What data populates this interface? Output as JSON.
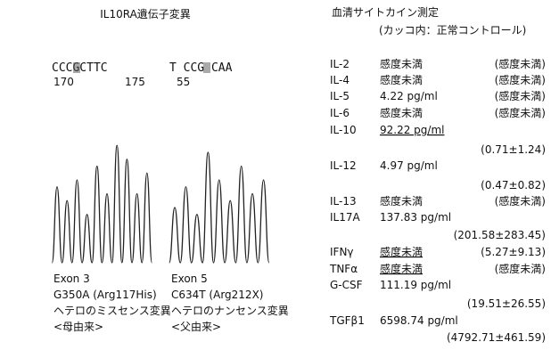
{
  "left": {
    "title": "IL10RA遺伝子変異",
    "panels": [
      {
        "sequence": "CCCGCTTC",
        "positions": [
          "170",
          "175"
        ],
        "exon": "Exon 3",
        "mutation": "G350A (Arg117His)",
        "type": "ヘテロのミスセンス変異",
        "origin": "<母由来>"
      },
      {
        "sequence": "T CCG CAA",
        "positions": [
          "55"
        ],
        "exon": "Exon 5",
        "mutation": "C634T (Arg212X)",
        "type": "ヘテロのナンセンス変異",
        "origin": "<父由来>"
      }
    ]
  },
  "right": {
    "title": "血清サイトカイン測定",
    "subtitle": "(カッコ内：正常コントロール)",
    "rows": [
      {
        "name": "IL-2",
        "value": "感度未満",
        "control": "(感度未満)"
      },
      {
        "name": "IL-4",
        "value": "感度未満",
        "control": "(感度未満)"
      },
      {
        "name": "IL-5",
        "value": "4.22 pg/ml",
        "control": "(感度未満)"
      },
      {
        "name": "IL-6",
        "value": "感度未満",
        "control": "(感度未満)"
      },
      {
        "name": "IL-10",
        "value": "92.22 pg/ml",
        "control": "(0.71±1.24)"
      },
      {
        "name": "IL-12",
        "value": "4.97 pg/ml",
        "control": "(0.47±0.82)"
      },
      {
        "name": "IL-13",
        "value": "感度未満",
        "control": "(感度未満)"
      },
      {
        "name": "IL17A",
        "value": "137.83 pg/ml",
        "control": "(201.58±283.45)"
      },
      {
        "name": "IFNγ",
        "value": "感度未満",
        "control": "(5.27±9.13)"
      },
      {
        "name": "TNFα",
        "value": "感度未満",
        "control": "(感度未満)"
      },
      {
        "name": "G-CSF",
        "value": "111.19 pg/ml",
        "control": "(19.51±26.55)"
      },
      {
        "name": "TGFβ1",
        "value": "6598.74 pg/ml",
        "control": "(4792.71±461.59)"
      }
    ]
  }
}
